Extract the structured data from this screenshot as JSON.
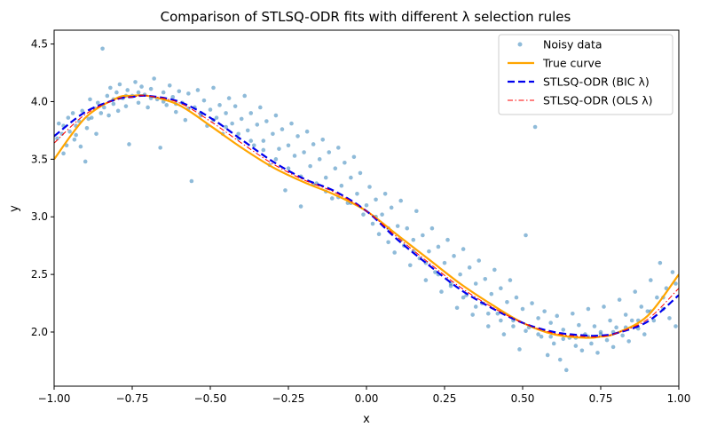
{
  "chart_data": {
    "type": "scatter",
    "title": "Comparison of STLSQ-ODR fits with different λ selection rules",
    "xlabel": "x",
    "ylabel": "y",
    "xlim": [
      -1.0,
      1.0
    ],
    "ylim": [
      1.53,
      4.62
    ],
    "x_ticks": [
      -1.0,
      -0.75,
      -0.5,
      -0.25,
      0.0,
      0.25,
      0.5,
      0.75,
      1.0
    ],
    "x_tick_labels": [
      "−1.00",
      "−0.75",
      "−0.50",
      "−0.25",
      "0.00",
      "0.25",
      "0.50",
      "0.75",
      "1.00"
    ],
    "y_ticks": [
      2.0,
      2.5,
      3.0,
      3.5,
      4.0,
      4.5
    ],
    "y_tick_labels": [
      "2.0",
      "2.5",
      "3.0",
      "3.5",
      "4.0",
      "4.5"
    ],
    "grid": false,
    "legend_position": "top-right",
    "series": [
      {
        "name": "Noisy data",
        "kind": "scatter",
        "color": "#1f77b4",
        "points": [
          [
            -0.99,
            3.68
          ],
          [
            -0.985,
            3.81
          ],
          [
            -0.975,
            3.72
          ],
          [
            -0.97,
            3.55
          ],
          [
            -0.96,
            3.62
          ],
          [
            -0.955,
            3.86
          ],
          [
            -0.95,
            3.74
          ],
          [
            -0.94,
            3.9
          ],
          [
            -0.935,
            3.67
          ],
          [
            -0.93,
            3.79
          ],
          [
            -0.92,
            3.83
          ],
          [
            -0.915,
            3.61
          ],
          [
            -0.91,
            3.92
          ],
          [
            -0.9,
            3.48
          ],
          [
            -0.895,
            3.77
          ],
          [
            -0.885,
            4.02
          ],
          [
            -0.88,
            3.86
          ],
          [
            -0.87,
            3.94
          ],
          [
            -0.865,
            3.72
          ],
          [
            -0.86,
            3.99
          ],
          [
            -0.845,
            4.46
          ],
          [
            -0.84,
            3.95
          ],
          [
            -0.83,
            4.05
          ],
          [
            -0.825,
            3.88
          ],
          [
            -0.82,
            4.12
          ],
          [
            -0.81,
            3.98
          ],
          [
            -0.8,
            4.08
          ],
          [
            -0.795,
            3.92
          ],
          [
            -0.79,
            4.15
          ],
          [
            -0.78,
            4.03
          ],
          [
            -0.77,
            3.96
          ],
          [
            -0.765,
            4.1
          ],
          [
            -0.76,
            3.63
          ],
          [
            -0.75,
            4.05
          ],
          [
            -0.74,
            4.17
          ],
          [
            -0.73,
            3.99
          ],
          [
            -0.72,
            4.13
          ],
          [
            -0.71,
            4.06
          ],
          [
            -0.7,
            3.95
          ],
          [
            -0.69,
            4.11
          ],
          [
            -0.68,
            4.2
          ],
          [
            -0.67,
            4.02
          ],
          [
            -0.66,
            3.6
          ],
          [
            -0.65,
            4.08
          ],
          [
            -0.64,
            3.97
          ],
          [
            -0.63,
            4.14
          ],
          [
            -0.62,
            4.04
          ],
          [
            -0.61,
            3.91
          ],
          [
            -0.6,
            4.09
          ],
          [
            -0.59,
            3.99
          ],
          [
            -0.58,
            3.84
          ],
          [
            -0.57,
            4.07
          ],
          [
            -0.56,
            3.31
          ],
          [
            -0.55,
            3.95
          ],
          [
            -0.54,
            4.1
          ],
          [
            -0.53,
            3.88
          ],
          [
            -0.52,
            4.01
          ],
          [
            -0.51,
            3.79
          ],
          [
            -0.5,
            3.93
          ],
          [
            -0.49,
            4.12
          ],
          [
            -0.48,
            3.86
          ],
          [
            -0.47,
            3.97
          ],
          [
            -0.46,
            3.72
          ],
          [
            -0.45,
            3.9
          ],
          [
            -0.44,
            4.03
          ],
          [
            -0.43,
            3.81
          ],
          [
            -0.42,
            3.96
          ],
          [
            -0.41,
            3.68
          ],
          [
            -0.4,
            3.85
          ],
          [
            -0.39,
            4.05
          ],
          [
            -0.38,
            3.75
          ],
          [
            -0.37,
            3.9
          ],
          [
            -0.36,
            3.62
          ],
          [
            -0.35,
            3.8
          ],
          [
            -0.34,
            3.95
          ],
          [
            -0.33,
            3.66
          ],
          [
            -0.32,
            3.83
          ],
          [
            -0.31,
            3.45
          ],
          [
            -0.3,
            3.72
          ],
          [
            -0.29,
            3.88
          ],
          [
            -0.28,
            3.59
          ],
          [
            -0.27,
            3.76
          ],
          [
            -0.26,
            3.23
          ],
          [
            -0.25,
            3.62
          ],
          [
            -0.24,
            3.81
          ],
          [
            -0.23,
            3.53
          ],
          [
            -0.22,
            3.7
          ],
          [
            -0.21,
            3.09
          ],
          [
            -0.2,
            3.56
          ],
          [
            -0.19,
            3.74
          ],
          [
            -0.18,
            3.44
          ],
          [
            -0.17,
            3.63
          ],
          [
            -0.16,
            3.29
          ],
          [
            -0.15,
            3.5
          ],
          [
            -0.14,
            3.67
          ],
          [
            -0.13,
            3.34
          ],
          [
            -0.12,
            3.56
          ],
          [
            -0.11,
            3.16
          ],
          [
            -0.1,
            3.42
          ],
          [
            -0.09,
            3.6
          ],
          [
            -0.08,
            3.27
          ],
          [
            -0.07,
            3.47
          ],
          [
            -0.06,
            3.12
          ],
          [
            -0.05,
            3.34
          ],
          [
            -0.04,
            3.52
          ],
          [
            -0.03,
            3.2
          ],
          [
            -0.02,
            3.38
          ],
          [
            -0.01,
            3.02
          ],
          [
            0.0,
            3.1
          ],
          [
            0.01,
            3.26
          ],
          [
            0.02,
            2.94
          ],
          [
            0.03,
            3.15
          ],
          [
            0.04,
            2.85
          ],
          [
            0.05,
            3.02
          ],
          [
            0.06,
            3.2
          ],
          [
            0.07,
            2.78
          ],
          [
            0.08,
            3.08
          ],
          [
            0.09,
            2.69
          ],
          [
            0.1,
            2.92
          ],
          [
            0.11,
            3.14
          ],
          [
            0.12,
            2.75
          ],
          [
            0.13,
            2.9
          ],
          [
            0.14,
            2.58
          ],
          [
            0.15,
            2.8
          ],
          [
            0.16,
            3.05
          ],
          [
            0.17,
            2.64
          ],
          [
            0.18,
            2.84
          ],
          [
            0.19,
            2.45
          ],
          [
            0.2,
            2.7
          ],
          [
            0.21,
            2.9
          ],
          [
            0.22,
            2.52
          ],
          [
            0.23,
            2.74
          ],
          [
            0.24,
            2.35
          ],
          [
            0.25,
            2.6
          ],
          [
            0.26,
            2.8
          ],
          [
            0.27,
            2.42
          ],
          [
            0.28,
            2.66
          ],
          [
            0.29,
            2.21
          ],
          [
            0.3,
            2.5
          ],
          [
            0.31,
            2.72
          ],
          [
            0.32,
            2.32
          ],
          [
            0.33,
            2.56
          ],
          [
            0.34,
            2.15
          ],
          [
            0.35,
            2.42
          ],
          [
            0.36,
            2.62
          ],
          [
            0.37,
            2.25
          ],
          [
            0.38,
            2.46
          ],
          [
            0.39,
            2.05
          ],
          [
            0.4,
            2.33
          ],
          [
            0.41,
            2.54
          ],
          [
            0.42,
            2.16
          ],
          [
            0.43,
            2.38
          ],
          [
            0.44,
            1.98
          ],
          [
            0.45,
            2.26
          ],
          [
            0.46,
            2.45
          ],
          [
            0.47,
            2.1
          ],
          [
            0.48,
            2.3
          ],
          [
            0.49,
            1.85
          ],
          [
            0.5,
            2.2
          ],
          [
            0.51,
            2.84
          ],
          [
            0.52,
            2.04
          ],
          [
            0.53,
            2.25
          ],
          [
            0.54,
            3.78
          ],
          [
            0.55,
            2.12
          ],
          [
            0.56,
            1.96
          ],
          [
            0.57,
            2.18
          ],
          [
            0.58,
            1.8
          ],
          [
            0.59,
            2.08
          ],
          [
            0.6,
            1.9
          ],
          [
            0.61,
            2.14
          ],
          [
            0.62,
            1.76
          ],
          [
            0.63,
            2.02
          ],
          [
            0.64,
            1.67
          ],
          [
            0.65,
            1.95
          ],
          [
            0.66,
            2.16
          ],
          [
            0.67,
            1.88
          ],
          [
            0.68,
            2.06
          ],
          [
            0.69,
            1.84
          ],
          [
            0.7,
            1.98
          ],
          [
            0.71,
            2.2
          ],
          [
            0.72,
            1.9
          ],
          [
            0.73,
            2.05
          ],
          [
            0.74,
            1.82
          ],
          [
            0.75,
            2.0
          ],
          [
            0.76,
            2.22
          ],
          [
            0.77,
            1.93
          ],
          [
            0.78,
            2.1
          ],
          [
            0.79,
            1.87
          ],
          [
            0.8,
            2.04
          ],
          [
            0.81,
            2.28
          ],
          [
            0.82,
            1.97
          ],
          [
            0.83,
            2.15
          ],
          [
            0.84,
            1.92
          ],
          [
            0.85,
            2.1
          ],
          [
            0.86,
            2.35
          ],
          [
            0.87,
            2.03
          ],
          [
            0.88,
            2.22
          ],
          [
            0.89,
            1.98
          ],
          [
            0.9,
            2.18
          ],
          [
            0.91,
            2.45
          ],
          [
            0.92,
            2.1
          ],
          [
            0.93,
            2.3
          ],
          [
            0.94,
            2.6
          ],
          [
            0.95,
            2.2
          ],
          [
            0.96,
            2.38
          ],
          [
            0.97,
            2.12
          ],
          [
            0.98,
            2.52
          ],
          [
            0.99,
            2.05
          ],
          [
            -0.97,
            3.79
          ],
          [
            -0.93,
            3.71
          ],
          [
            -0.89,
            3.85
          ],
          [
            -0.85,
            3.9
          ],
          [
            -0.81,
            4.02
          ],
          [
            -0.77,
            4.05
          ],
          [
            -0.73,
            4.08
          ],
          [
            -0.69,
            4.03
          ],
          [
            -0.65,
            4.0
          ],
          [
            -0.61,
            3.98
          ],
          [
            -0.57,
            3.94
          ],
          [
            -0.53,
            3.9
          ],
          [
            -0.49,
            3.84
          ],
          [
            -0.45,
            3.78
          ],
          [
            -0.41,
            3.72
          ],
          [
            -0.37,
            3.66
          ],
          [
            -0.33,
            3.58
          ],
          [
            -0.29,
            3.5
          ],
          [
            -0.25,
            3.42
          ],
          [
            -0.21,
            3.35
          ],
          [
            -0.17,
            3.28
          ],
          [
            -0.13,
            3.22
          ],
          [
            -0.09,
            3.17
          ],
          [
            -0.05,
            3.12
          ],
          [
            0.03,
            3.0
          ],
          [
            0.07,
            2.9
          ],
          [
            0.11,
            2.8
          ],
          [
            0.15,
            2.7
          ],
          [
            0.19,
            2.6
          ],
          [
            0.23,
            2.5
          ],
          [
            0.27,
            2.4
          ],
          [
            0.31,
            2.3
          ],
          [
            0.35,
            2.22
          ],
          [
            0.39,
            2.16
          ],
          [
            0.43,
            2.1
          ],
          [
            0.47,
            2.05
          ],
          [
            0.51,
            2.01
          ],
          [
            0.55,
            1.98
          ],
          [
            0.59,
            1.96
          ],
          [
            0.63,
            1.94
          ],
          [
            0.67,
            1.95
          ],
          [
            0.71,
            1.96
          ],
          [
            0.75,
            1.98
          ],
          [
            0.79,
            2.0
          ],
          [
            0.83,
            2.04
          ],
          [
            0.87,
            2.1
          ],
          [
            0.91,
            2.18
          ],
          [
            0.95,
            2.3
          ],
          [
            0.99,
            2.42
          ]
        ]
      },
      {
        "name": "True curve",
        "kind": "line",
        "color": "#ffa500",
        "style": "solid",
        "x": [
          -1.0,
          -0.9,
          -0.8,
          -0.75,
          -0.7,
          -0.6,
          -0.5,
          -0.4,
          -0.3,
          -0.2,
          -0.1,
          0.0,
          0.1,
          0.2,
          0.3,
          0.4,
          0.5,
          0.6,
          0.7,
          0.75,
          0.8,
          0.9,
          1.0
        ],
        "y": [
          3.5,
          3.86,
          4.03,
          4.05,
          4.05,
          3.97,
          3.79,
          3.6,
          3.43,
          3.3,
          3.19,
          3.05,
          2.84,
          2.63,
          2.42,
          2.24,
          2.08,
          1.98,
          1.95,
          1.96,
          1.99,
          2.14,
          2.5
        ]
      },
      {
        "name": "STLSQ-ODR (BIC λ)",
        "kind": "line",
        "color": "#0000ee",
        "style": "dashed",
        "x": [
          -1.0,
          -0.9,
          -0.8,
          -0.75,
          -0.7,
          -0.6,
          -0.5,
          -0.4,
          -0.3,
          -0.2,
          -0.1,
          0.0,
          0.1,
          0.2,
          0.3,
          0.4,
          0.5,
          0.6,
          0.7,
          0.75,
          0.8,
          0.9,
          1.0
        ],
        "y": [
          3.7,
          3.91,
          4.02,
          4.04,
          4.05,
          4.0,
          3.86,
          3.67,
          3.48,
          3.33,
          3.22,
          3.05,
          2.8,
          2.58,
          2.37,
          2.21,
          2.08,
          2.0,
          1.97,
          1.97,
          1.99,
          2.09,
          2.32
        ]
      },
      {
        "name": "STLSQ-ODR (OLS λ)",
        "kind": "line",
        "color": "#ff0000",
        "style": "dashdot",
        "x": [
          -1.0,
          -0.9,
          -0.8,
          -0.75,
          -0.7,
          -0.6,
          -0.5,
          -0.4,
          -0.3,
          -0.2,
          -0.1,
          0.0,
          0.1,
          0.2,
          0.3,
          0.4,
          0.5,
          0.6,
          0.7,
          0.75,
          0.8,
          0.9,
          1.0
        ],
        "y": [
          3.64,
          3.89,
          4.02,
          4.04,
          4.05,
          3.99,
          3.83,
          3.64,
          3.46,
          3.32,
          3.21,
          3.05,
          2.82,
          2.6,
          2.39,
          2.22,
          2.08,
          1.99,
          1.96,
          1.96,
          1.99,
          2.11,
          2.38
        ]
      }
    ]
  }
}
